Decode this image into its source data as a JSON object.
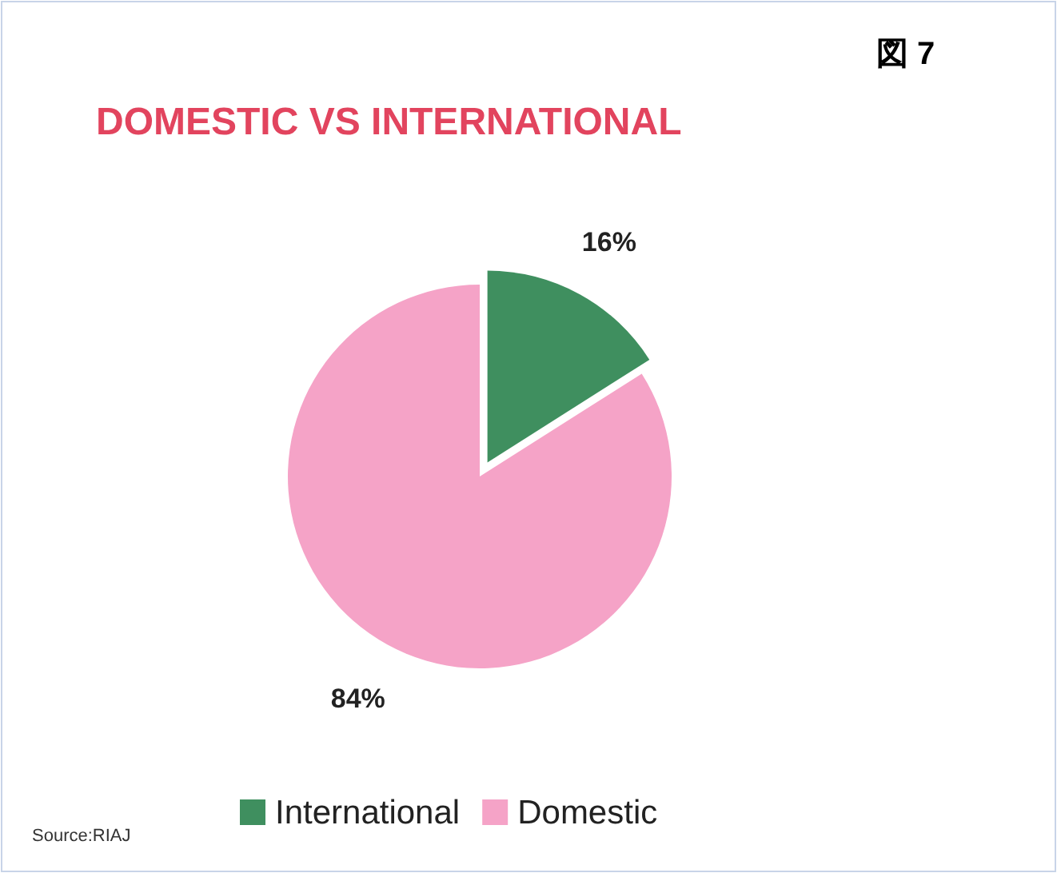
{
  "chart_data": {
    "type": "pie",
    "title": "DOMESTIC VS INTERNATIONAL",
    "categories": [
      "International",
      "Domestic"
    ],
    "values": [
      16,
      84
    ],
    "colors": [
      "#3f8f5f",
      "#f5a3c7"
    ],
    "value_labels": [
      "16%",
      "84%"
    ],
    "legend": "bottom",
    "annotations": [
      "図 7",
      "Source:RIAJ"
    ]
  }
}
